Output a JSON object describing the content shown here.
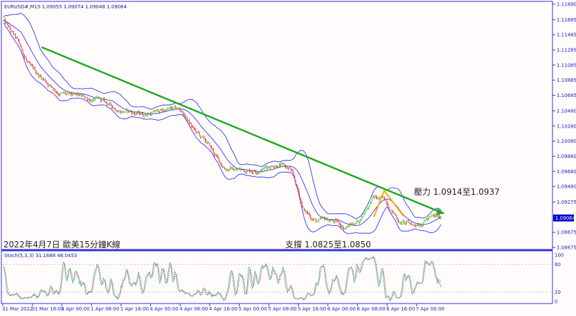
{
  "header": {
    "symbol_line": "EURUSD#,M15  1.09055 1.09074 1.09048 1.09064"
  },
  "annotations": {
    "title": "2022年4月7日 歐美15分鐘K線",
    "resistance": "壓力 1.0914至1.0937",
    "support": "支撐 1.0825至1.0850"
  },
  "colors": {
    "background": "#fffcfb",
    "axis": "#3030e0",
    "candle_up": "#22dd22",
    "candle_down": "#ee2222",
    "bollinger": "#1a1aff",
    "trendline": "#1faa1f",
    "pattern": "#ffaa00",
    "stoch_main": "#3dbdb0",
    "stoch_signal": "#ff2020",
    "current_price_bg": "#0000c8"
  },
  "chart_data": {
    "type": "candlestick",
    "symbol": "EURUSD#",
    "timeframe": "M15",
    "ohlc_last": {
      "open": 1.09055,
      "high": 1.09074,
      "low": 1.09048,
      "close": 1.09064
    },
    "current_price": "1.09064",
    "ylim": [
      1.08675,
      1.1189
    ],
    "y_ticks": [
      "1.11890",
      "1.11685",
      "1.11485",
      "1.11285",
      "1.11085",
      "1.10885",
      "1.10685",
      "1.10480",
      "1.10280",
      "1.10080",
      "1.09880",
      "1.09680",
      "1.09480",
      "1.09275",
      "1.08875",
      "1.08675"
    ],
    "x_ticks": [
      "31 Mar 2022",
      "31 Mar 16:00",
      "1 Apr 00:00",
      "1 Apr 08:00",
      "1 Apr 16:00",
      "4 Apr 00:00",
      "4 Apr 08:00",
      "4 Apr 16:00",
      "5 Apr 00:00",
      "5 Apr 08:00",
      "5 Apr 16:00",
      "6 Apr 00:00",
      "6 Apr 08:00",
      "6 Apr 16:00",
      "7 Apr 00:00"
    ],
    "close_path_sampled": [
      1.1167,
      1.11395,
      1.11029,
      1.10892,
      1.10736,
      1.10663,
      1.10644,
      1.10617,
      1.10525,
      1.10479,
      1.10434,
      1.10461,
      1.10498,
      1.10479,
      1.10205,
      1.10021,
      1.09747,
      1.09701,
      1.09701,
      1.09728,
      1.09792,
      1.09701,
      1.09151,
      1.09014,
      1.09032,
      1.0894,
      1.09032,
      1.09334,
      1.09289,
      1.09014,
      1.08968,
      1.09069,
      1.09064
    ],
    "indicators": {
      "bollinger": {
        "period": 20,
        "deviation": 2
      },
      "stochastic": {
        "label": "Stoch(5,3,3) 31.1688 46.0453",
        "k": 31.1688,
        "d": 46.0453,
        "ylim": [
          0,
          100
        ],
        "levels": [
          "100",
          "80",
          "20",
          "0"
        ]
      }
    },
    "trendline": {
      "from_price": 1.11322,
      "to_price": 1.09142
    },
    "grid": false
  }
}
